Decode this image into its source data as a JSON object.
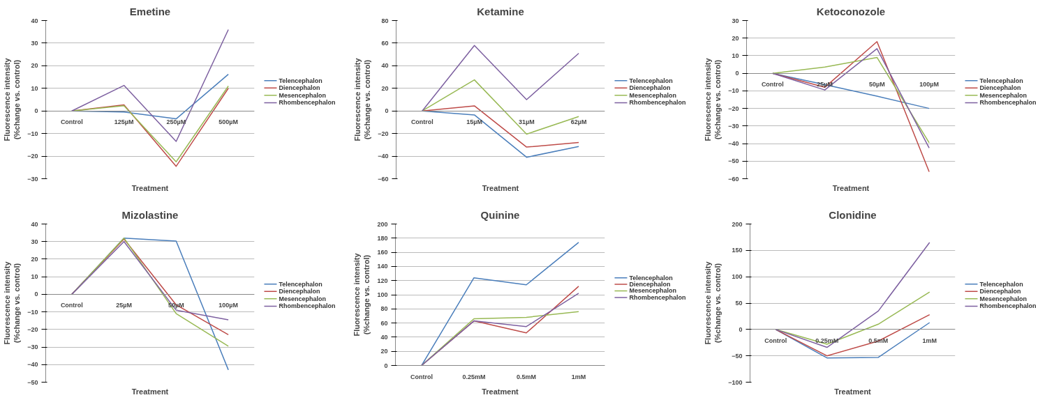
{
  "chart_data": [
    {
      "type": "line",
      "title": "Emetine",
      "xlabel": "Treatment",
      "ylabel": "Fluorescence intensity\n(%change vs. control)",
      "categories": [
        "Control",
        "125µM",
        "250µM",
        "500µM"
      ],
      "ylim": [
        -30,
        40
      ],
      "yticks": [
        -30,
        -20,
        -10,
        0,
        10,
        20,
        30,
        40
      ],
      "grid": "y",
      "legend": "right",
      "marker": "none",
      "line_style": "solid",
      "series": [
        {
          "name": "Telencephalon",
          "color": "#4a7ebb",
          "values": [
            0,
            -0.5,
            -3.5,
            16.2
          ]
        },
        {
          "name": "Diencephalon",
          "color": "#be4b48",
          "values": [
            0,
            2.7,
            -24.5,
            10
          ]
        },
        {
          "name": "Mesencephalon",
          "color": "#98b954",
          "values": [
            0,
            2.3,
            -22.5,
            11
          ]
        },
        {
          "name": "Rhombencephalon",
          "color": "#7d60a0",
          "values": [
            0,
            11.3,
            -13.5,
            36
          ]
        }
      ]
    },
    {
      "type": "line",
      "title": "Ketamine",
      "xlabel": "Treatment",
      "ylabel": "Fluorescence intensity\n(%change vs. control)",
      "categories": [
        "Control",
        "15µM",
        "31µM",
        "62µM"
      ],
      "ylim": [
        -60,
        80
      ],
      "yticks": [
        -60,
        -40,
        -20,
        0,
        20,
        40,
        60,
        80
      ],
      "grid": "y",
      "legend": "right",
      "marker": "none",
      "line_style": "solid",
      "series": [
        {
          "name": "Telencephalon",
          "color": "#4a7ebb",
          "values": [
            0,
            -3.5,
            -41,
            -31.5
          ]
        },
        {
          "name": "Diencephalon",
          "color": "#be4b48",
          "values": [
            0,
            4.5,
            -32,
            -28
          ]
        },
        {
          "name": "Mesencephalon",
          "color": "#98b954",
          "values": [
            0,
            27.5,
            -20.5,
            -5
          ]
        },
        {
          "name": "Rhombencephalon",
          "color": "#7d60a0",
          "values": [
            0,
            58,
            10,
            51
          ]
        }
      ]
    },
    {
      "type": "line",
      "title": "Ketoconozole",
      "xlabel": "Treatment",
      "ylabel": "Fluorescence intensity\n(%change vs. control)",
      "categories": [
        "Control",
        "25µM",
        "50µM",
        "100µM"
      ],
      "ylim": [
        -60,
        30
      ],
      "yticks": [
        -60,
        -50,
        -40,
        -30,
        -20,
        -10,
        0,
        10,
        20,
        30
      ],
      "grid": "y",
      "legend": "right",
      "marker": "none",
      "line_style": "solid",
      "series": [
        {
          "name": "Telencephalon",
          "color": "#4a7ebb",
          "values": [
            0,
            -6.5,
            -13,
            -20
          ]
        },
        {
          "name": "Diencephalon",
          "color": "#be4b48",
          "values": [
            0,
            -8,
            18,
            -56
          ]
        },
        {
          "name": "Mesencephalon",
          "color": "#98b954",
          "values": [
            0,
            3.5,
            9,
            -39.5
          ]
        },
        {
          "name": "Rhombencephalon",
          "color": "#7d60a0",
          "values": [
            0,
            -9.5,
            14,
            -42.5
          ]
        }
      ]
    },
    {
      "type": "line",
      "title": "Mizolastine",
      "xlabel": "Treatment",
      "ylabel": "Fluorescence intensity\n(%change vs. control)",
      "categories": [
        "Control",
        "25µM",
        "50µM",
        "100µM"
      ],
      "ylim": [
        -50,
        40
      ],
      "yticks": [
        -50,
        -40,
        -30,
        -20,
        -10,
        0,
        10,
        20,
        30,
        40
      ],
      "grid": "y",
      "legend": "right",
      "marker": "none",
      "line_style": "solid",
      "series": [
        {
          "name": "Telencephalon",
          "color": "#4a7ebb",
          "values": [
            0,
            32,
            30.3,
            -43
          ]
        },
        {
          "name": "Diencephalon",
          "color": "#be4b48",
          "values": [
            0,
            31.5,
            -6,
            -23
          ]
        },
        {
          "name": "Mesencephalon",
          "color": "#98b954",
          "values": [
            0,
            32,
            -11,
            -29.5
          ]
        },
        {
          "name": "Rhombencephalon",
          "color": "#7d60a0",
          "values": [
            0,
            30,
            -9,
            -14.5
          ]
        }
      ]
    },
    {
      "type": "line",
      "title": "Quinine",
      "xlabel": "Treatment",
      "ylabel": "Fluorescence intensity\n(%change vs. control)",
      "categories": [
        "Control",
        "0.25mM",
        "0.5mM",
        "1mM"
      ],
      "ylim": [
        0,
        200
      ],
      "yticks": [
        0,
        20,
        40,
        60,
        80,
        100,
        120,
        140,
        160,
        180,
        200
      ],
      "grid": "y",
      "legend": "right",
      "marker": "none",
      "line_style": "solid",
      "series": [
        {
          "name": "Telencephalon",
          "color": "#4a7ebb",
          "values": [
            0,
            124,
            114,
            174
          ]
        },
        {
          "name": "Diencephalon",
          "color": "#be4b48",
          "values": [
            0,
            63,
            46,
            112
          ]
        },
        {
          "name": "Mesencephalon",
          "color": "#98b954",
          "values": [
            0,
            66,
            68,
            76
          ]
        },
        {
          "name": "Rhombencephalon",
          "color": "#7d60a0",
          "values": [
            0,
            63,
            55,
            102
          ]
        }
      ]
    },
    {
      "type": "line",
      "title": "Clonidine",
      "xlabel": "Treatment",
      "ylabel": "Fluorescence intensity\n(%change vs. control)",
      "categories": [
        "Control",
        "0.25mM",
        "0.5mM",
        "1mM"
      ],
      "ylim": [
        -100,
        200
      ],
      "yticks": [
        -100,
        -50,
        0,
        50,
        100,
        150,
        200
      ],
      "grid": "y",
      "legend": "right",
      "marker": "none",
      "line_style": "solid",
      "series": [
        {
          "name": "Telencephalon",
          "color": "#4a7ebb",
          "values": [
            0,
            -54,
            -53,
            13
          ]
        },
        {
          "name": "Diencephalon",
          "color": "#be4b48",
          "values": [
            0,
            -50,
            -22,
            28
          ]
        },
        {
          "name": "Mesencephalon",
          "color": "#98b954",
          "values": [
            0,
            -28,
            10,
            71
          ]
        },
        {
          "name": "Rhombencephalon",
          "color": "#7d60a0",
          "values": [
            0,
            -34,
            35,
            165
          ]
        }
      ]
    }
  ]
}
